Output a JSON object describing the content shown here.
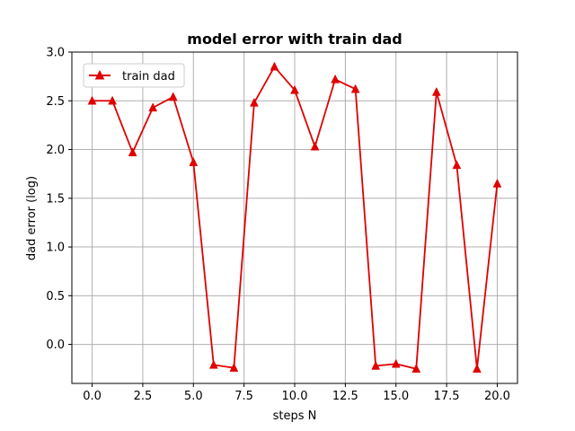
{
  "chart_data": {
    "type": "line",
    "title": "model error with train dad",
    "xlabel": "steps N",
    "ylabel": "dad error (log)",
    "xlim": [
      -1.0,
      21.0
    ],
    "ylim": [
      -0.4,
      3.0
    ],
    "xticks": [
      0.0,
      2.5,
      5.0,
      7.5,
      10.0,
      12.5,
      15.0,
      17.5,
      20.0
    ],
    "xtick_labels": [
      "0.0",
      "2.5",
      "5.0",
      "7.5",
      "10.0",
      "12.5",
      "15.0",
      "17.5",
      "20.0"
    ],
    "yticks": [
      0.0,
      0.5,
      1.0,
      1.5,
      2.0,
      2.5,
      3.0
    ],
    "ytick_labels": [
      "0.0",
      "0.5",
      "1.0",
      "1.5",
      "2.0",
      "2.5",
      "3.0"
    ],
    "grid": true,
    "legend_position": "top-left",
    "series": [
      {
        "name": "train dad",
        "color": "#e00000",
        "marker": "triangle-up",
        "x": [
          0,
          1,
          2,
          3,
          4,
          5,
          6,
          7,
          8,
          9,
          10,
          11,
          12,
          13,
          14,
          15,
          16,
          17,
          18,
          19,
          20
        ],
        "y": [
          2.5,
          2.5,
          1.97,
          2.43,
          2.54,
          1.87,
          -0.21,
          -0.24,
          2.48,
          2.85,
          2.61,
          2.03,
          2.72,
          2.62,
          -0.22,
          -0.2,
          -0.25,
          2.59,
          1.84,
          -0.25,
          1.65
        ]
      }
    ]
  }
}
